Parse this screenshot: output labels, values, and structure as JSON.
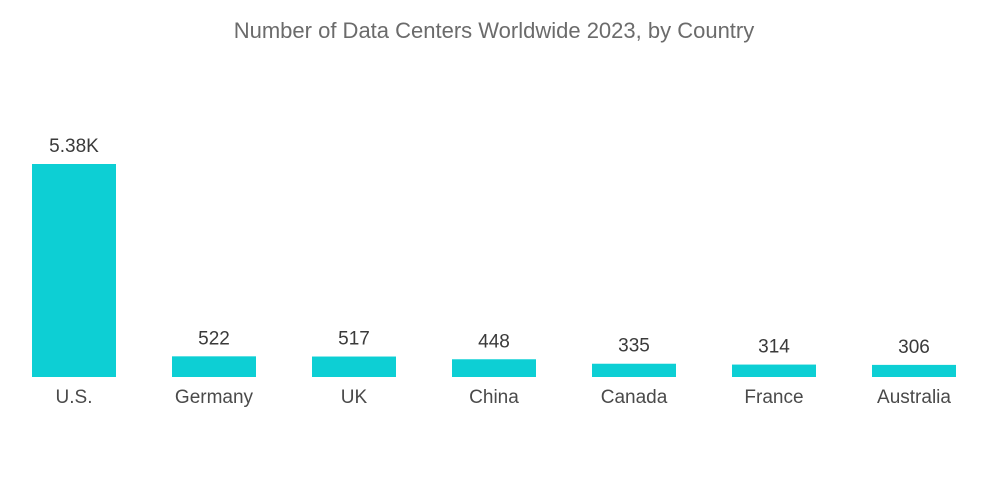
{
  "chart_data": {
    "type": "bar",
    "title": "Number of Data Centers Worldwide 2023, by Country",
    "xlabel": "",
    "ylabel": "",
    "categories": [
      "U.S.",
      "Germany",
      "UK",
      "China",
      "Canada",
      "France",
      "Australia"
    ],
    "values": [
      5380,
      522,
      517,
      448,
      335,
      314,
      306
    ],
    "value_labels": [
      "5.38K",
      "522",
      "517",
      "448",
      "335",
      "314",
      "306"
    ],
    "ylim": [
      0,
      5380
    ],
    "grid": false,
    "legend": "none",
    "bar_color": "#0dcfd4"
  }
}
